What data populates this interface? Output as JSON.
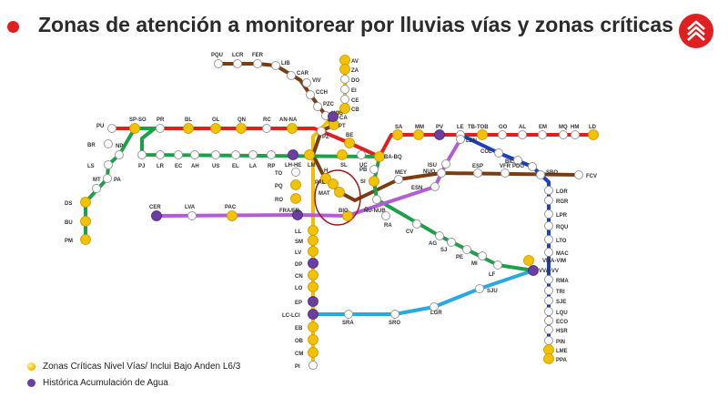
{
  "header": {
    "title": "Zonas de atención a monitorear por lluvias vías y zonas críticas"
  },
  "colors": {
    "title_dot": "#e02020",
    "critical": "#f2c200",
    "water": "#6b3fa0",
    "normal": "#ffffff"
  },
  "legend": {
    "critical_label": "Zonas Críticas Nivel Vías/ Inclui Bajo Anden L6/3",
    "water_label": "Histórica Acumulación de Agua"
  },
  "network": {
    "lines": [
      {
        "id": "L1",
        "color": "#e02020"
      },
      {
        "id": "L2",
        "color": "#f0c000"
      },
      {
        "id": "L3",
        "color": "#7a3d12"
      },
      {
        "id": "L4",
        "color": "#1a3fbf"
      },
      {
        "id": "L4A",
        "color": "#2aa8e0"
      },
      {
        "id": "L5",
        "color": "#1ea04a"
      },
      {
        "id": "L6",
        "color": "#b35cd6"
      }
    ],
    "stations": [
      {
        "name": "PU",
        "status": "normal"
      },
      {
        "name": "SP-SO",
        "status": "critical"
      },
      {
        "name": "PR",
        "status": "normal"
      },
      {
        "name": "BL",
        "status": "critical"
      },
      {
        "name": "GL",
        "status": "critical"
      },
      {
        "name": "QN",
        "status": "critical"
      },
      {
        "name": "RC",
        "status": "normal"
      },
      {
        "name": "AN-NA",
        "status": "critical"
      },
      {
        "name": "PZ",
        "status": "normal"
      },
      {
        "name": "BE",
        "status": "critical"
      },
      {
        "name": "BA-BQ",
        "status": "critical"
      },
      {
        "name": "SA",
        "status": "critical"
      },
      {
        "name": "MM",
        "status": "critical"
      },
      {
        "name": "PV",
        "status": "water"
      },
      {
        "name": "LE",
        "status": "normal"
      },
      {
        "name": "TB-TOB",
        "status": "critical"
      },
      {
        "name": "GO",
        "status": "normal"
      },
      {
        "name": "AL",
        "status": "normal"
      },
      {
        "name": "EM",
        "status": "normal"
      },
      {
        "name": "MQ",
        "status": "normal"
      },
      {
        "name": "HM",
        "status": "normal"
      },
      {
        "name": "LD",
        "status": "critical"
      },
      {
        "name": "BR",
        "status": "normal"
      },
      {
        "name": "NP",
        "status": "normal"
      },
      {
        "name": "LS",
        "status": "normal"
      },
      {
        "name": "PA",
        "status": "normal"
      },
      {
        "name": "MT",
        "status": "normal"
      },
      {
        "name": "DS",
        "status": "critical"
      },
      {
        "name": "BU",
        "status": "critical"
      },
      {
        "name": "PM",
        "status": "critical"
      },
      {
        "name": "PJ",
        "status": "normal"
      },
      {
        "name": "LR",
        "status": "normal"
      },
      {
        "name": "EC",
        "status": "normal"
      },
      {
        "name": "AH",
        "status": "normal"
      },
      {
        "name": "US",
        "status": "normal"
      },
      {
        "name": "EL",
        "status": "normal"
      },
      {
        "name": "LA",
        "status": "normal"
      },
      {
        "name": "RP",
        "status": "normal"
      },
      {
        "name": "LH-HE",
        "status": "water"
      },
      {
        "name": "LM",
        "status": "critical"
      },
      {
        "name": "SL",
        "status": "critical"
      },
      {
        "name": "UC",
        "status": "normal"
      },
      {
        "name": "PQU",
        "status": "normal"
      },
      {
        "name": "LCR",
        "status": "normal"
      },
      {
        "name": "FER",
        "status": "normal"
      },
      {
        "name": "LIB",
        "status": "normal"
      },
      {
        "name": "CAR",
        "status": "normal"
      },
      {
        "name": "VIV",
        "status": "normal"
      },
      {
        "name": "CCH",
        "status": "normal"
      },
      {
        "name": "PZC",
        "status": "normal"
      },
      {
        "name": "HOS",
        "status": "normal"
      },
      {
        "name": "PT",
        "status": "critical"
      },
      {
        "name": "AV",
        "status": "critical"
      },
      {
        "name": "ZA",
        "status": "critical"
      },
      {
        "name": "DO",
        "status": "normal"
      },
      {
        "name": "EI",
        "status": "normal"
      },
      {
        "name": "CE",
        "status": "normal"
      },
      {
        "name": "CB",
        "status": "critical"
      },
      {
        "name": "CA",
        "status": "water"
      },
      {
        "name": "TO",
        "status": "normal"
      },
      {
        "name": "PQ",
        "status": "critical"
      },
      {
        "name": "RO",
        "status": "critical"
      },
      {
        "name": "FRA/FR",
        "status": "water"
      },
      {
        "name": "LL",
        "status": "critical"
      },
      {
        "name": "SM",
        "status": "critical"
      },
      {
        "name": "LV",
        "status": "critical"
      },
      {
        "name": "DP",
        "status": "water"
      },
      {
        "name": "CN",
        "status": "critical"
      },
      {
        "name": "LO",
        "status": "critical"
      },
      {
        "name": "EP",
        "status": "water"
      },
      {
        "name": "LC-LCI",
        "status": "water"
      },
      {
        "name": "EB",
        "status": "critical"
      },
      {
        "name": "OB",
        "status": "critical"
      },
      {
        "name": "CM",
        "status": "critical"
      },
      {
        "name": "PI",
        "status": "normal"
      },
      {
        "name": "CER",
        "status": "water"
      },
      {
        "name": "LVA",
        "status": "normal"
      },
      {
        "name": "PAC",
        "status": "critical"
      },
      {
        "name": "H",
        "status": "critical"
      },
      {
        "name": "PAL",
        "status": "critical"
      },
      {
        "name": "MAT",
        "status": "critical"
      },
      {
        "name": "BIO",
        "status": "critical"
      },
      {
        "name": "SI",
        "status": "critical"
      },
      {
        "name": "PB",
        "status": "normal"
      },
      {
        "name": "ÑU-NUB",
        "status": "normal"
      },
      {
        "name": "RA",
        "status": "normal"
      },
      {
        "name": "CV",
        "status": "normal"
      },
      {
        "name": "AG",
        "status": "normal"
      },
      {
        "name": "SJ",
        "status": "normal"
      },
      {
        "name": "PE",
        "status": "normal"
      },
      {
        "name": "MI",
        "status": "normal"
      },
      {
        "name": "LF",
        "status": "normal"
      },
      {
        "name": "ISU",
        "status": "normal"
      },
      {
        "name": "LEN",
        "status": "normal"
      },
      {
        "name": "MEY",
        "status": "normal"
      },
      {
        "name": "NUO",
        "status": "normal"
      },
      {
        "name": "ESN",
        "status": "normal"
      },
      {
        "name": "ESP",
        "status": "normal"
      },
      {
        "name": "VFR",
        "status": "normal"
      },
      {
        "name": "COL",
        "status": "normal"
      },
      {
        "name": "BIL",
        "status": "normal"
      },
      {
        "name": "PDG",
        "status": "normal"
      },
      {
        "name": "SBO",
        "status": "normal"
      },
      {
        "name": "FCV",
        "status": "normal"
      },
      {
        "name": "LOR",
        "status": "normal"
      },
      {
        "name": "RGR",
        "status": "normal"
      },
      {
        "name": "LPR",
        "status": "normal"
      },
      {
        "name": "RQU",
        "status": "normal"
      },
      {
        "name": "LTO",
        "status": "normal"
      },
      {
        "name": "MAC",
        "status": "normal"
      },
      {
        "name": "VMA-VIM",
        "status": "critical"
      },
      {
        "name": "VVA-VV",
        "status": "water"
      },
      {
        "name": "RMA",
        "status": "normal"
      },
      {
        "name": "TRI",
        "status": "normal"
      },
      {
        "name": "SJE",
        "status": "normal"
      },
      {
        "name": "LQU",
        "status": "normal"
      },
      {
        "name": "ECO",
        "status": "normal"
      },
      {
        "name": "HSR",
        "status": "normal"
      },
      {
        "name": "PIN",
        "status": "normal"
      },
      {
        "name": "LME",
        "status": "critical"
      },
      {
        "name": "PPA",
        "status": "critical"
      },
      {
        "name": "SJU",
        "status": "normal"
      },
      {
        "name": "LGR",
        "status": "normal"
      },
      {
        "name": "SRO",
        "status": "normal"
      },
      {
        "name": "SRA",
        "status": "normal"
      }
    ]
  }
}
